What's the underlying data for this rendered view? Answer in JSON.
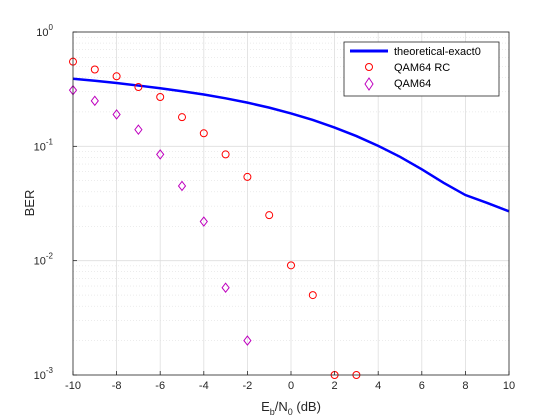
{
  "chart_data": {
    "type": "scatter",
    "xlabel": {
      "base": "E",
      "sub1": "b",
      "mid": "/N",
      "sub2": "0",
      "tail": " (dB)"
    },
    "ylabel": "BER",
    "xlim": [
      -10,
      10
    ],
    "ylim": [
      0.001,
      1
    ],
    "yscale": "log",
    "grid": true,
    "minor_grid": true,
    "legend_position": "top-right",
    "xticks": [
      "-10",
      "-8",
      "-6",
      "-4",
      "-2",
      "0",
      "2",
      "4",
      "6",
      "8",
      "10"
    ],
    "yticks": [
      {
        "base": "10",
        "exp": "0"
      },
      {
        "base": "10",
        "exp": "-1"
      },
      {
        "base": "10",
        "exp": "-2"
      },
      {
        "base": "10",
        "exp": "-3"
      }
    ],
    "series": [
      {
        "name": "theoretical-exact0",
        "style": "line",
        "color": "#0000ff",
        "x": [
          -10,
          -9,
          -8,
          -7,
          -6,
          -5,
          -4,
          -3,
          -2,
          -1,
          0,
          1,
          2,
          3,
          4,
          5,
          6,
          7,
          8,
          9,
          10
        ],
        "y": [
          0.39,
          0.375,
          0.358,
          0.34,
          0.322,
          0.303,
          0.284,
          0.263,
          0.241,
          0.218,
          0.194,
          0.17,
          0.146,
          0.123,
          0.101,
          0.081,
          0.063,
          0.048,
          0.0375,
          0.032,
          0.027
        ]
      },
      {
        "name": "QAM64 RC",
        "style": "marker-circle",
        "color": "#ff0000",
        "x": [
          -10,
          -9,
          -8,
          -7,
          -6,
          -5,
          -4,
          -3,
          -2,
          -1,
          0,
          1,
          2,
          3
        ],
        "y": [
          0.55,
          0.47,
          0.41,
          0.33,
          0.27,
          0.18,
          0.13,
          0.085,
          0.054,
          0.025,
          0.0091,
          0.005,
          0.001,
          0.001
        ]
      },
      {
        "name": "QAM64",
        "style": "marker-diamond",
        "color": "#bf00bf",
        "x": [
          -10,
          -9,
          -8,
          -7,
          -6,
          -5,
          -4,
          -3,
          -2
        ],
        "y": [
          0.31,
          0.25,
          0.19,
          0.14,
          0.085,
          0.045,
          0.022,
          0.0058,
          0.002
        ]
      }
    ]
  }
}
